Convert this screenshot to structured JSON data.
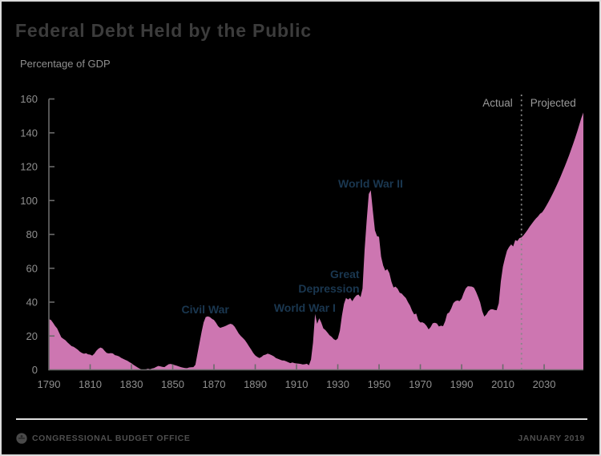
{
  "header": {
    "title": "Federal Debt Held by the Public",
    "units_label": "Percentage of GDP"
  },
  "footer": {
    "org": "CONGRESSIONAL BUDGET OFFICE",
    "date": "JANUARY 2019",
    "logo": "cbo-seal-icon"
  },
  "colors": {
    "background": "#000000",
    "border": "#dcdcdc",
    "area_fill": "#cd76b1",
    "axis": "#6a6a6a",
    "tick_label": "#8f8f8f",
    "title": "#3c3c3c",
    "subtitle": "#8f8f8f",
    "annotation": "#1a3750",
    "divider": "#888888",
    "divider_label": "#9a9a9a",
    "footer_text": "#4f4f4f",
    "footer_line": "#dedede"
  },
  "chart_data": {
    "type": "area",
    "title": "Federal Debt Held by the Public",
    "ylabel": "Percentage of GDP",
    "xlim": [
      1790,
      2049
    ],
    "ylim": [
      0,
      160
    ],
    "y_ticks": [
      0,
      20,
      40,
      60,
      80,
      100,
      120,
      140,
      160
    ],
    "x_ticks": [
      1790,
      1810,
      1830,
      1850,
      1870,
      1890,
      1910,
      1930,
      1950,
      1970,
      1990,
      2010,
      2030
    ],
    "grid": false,
    "legend": false,
    "divider": {
      "year": 2019,
      "left_label": "Actual",
      "right_label": "Projected"
    },
    "annotations": [
      {
        "label": "Civil War",
        "year": 1865.8,
        "pct": 33.4,
        "anchor": "middle"
      },
      {
        "label": "World War I",
        "year": 1914.0,
        "pct": 34.3,
        "anchor": "middle"
      },
      {
        "label": "Great",
        "year": 1940.5,
        "pct": 54.2,
        "anchor": "end"
      },
      {
        "label": "Depression",
        "year": 1940.5,
        "pct": 45.6,
        "anchor": "end"
      },
      {
        "label": "World War II",
        "year": 1945.9,
        "pct": 107.6,
        "anchor": "middle"
      }
    ],
    "series": [
      {
        "name": "Federal debt held by the public (% of GDP)",
        "points": [
          [
            1790,
            30
          ],
          [
            1791,
            29.5
          ],
          [
            1792,
            27.8
          ],
          [
            1793,
            26
          ],
          [
            1794,
            24.5
          ],
          [
            1795,
            21.8
          ],
          [
            1796,
            19.2
          ],
          [
            1797,
            18.3
          ],
          [
            1798,
            17.5
          ],
          [
            1799,
            16.2
          ],
          [
            1800,
            15.1
          ],
          [
            1801,
            14
          ],
          [
            1802,
            13.6
          ],
          [
            1803,
            12.8
          ],
          [
            1804,
            11.9
          ],
          [
            1805,
            10.8
          ],
          [
            1806,
            10
          ],
          [
            1807,
            9.5
          ],
          [
            1808,
            9.8
          ],
          [
            1809,
            9.2
          ],
          [
            1810,
            9
          ],
          [
            1811,
            8.4
          ],
          [
            1812,
            9.5
          ],
          [
            1813,
            11.2
          ],
          [
            1814,
            12.5
          ],
          [
            1815,
            13.2
          ],
          [
            1816,
            12.7
          ],
          [
            1817,
            11.2
          ],
          [
            1818,
            10
          ],
          [
            1819,
            9.7
          ],
          [
            1820,
            9.9
          ],
          [
            1821,
            9.7
          ],
          [
            1822,
            8.7
          ],
          [
            1823,
            8.4
          ],
          [
            1824,
            7.9
          ],
          [
            1825,
            7.1
          ],
          [
            1826,
            6.5
          ],
          [
            1827,
            5.9
          ],
          [
            1828,
            5.4
          ],
          [
            1829,
            4.6
          ],
          [
            1830,
            3.9
          ],
          [
            1831,
            3
          ],
          [
            1832,
            2.2
          ],
          [
            1833,
            1.4
          ],
          [
            1834,
            0.7
          ],
          [
            1835,
            0.2
          ],
          [
            1836,
            0.1
          ],
          [
            1837,
            0.3
          ],
          [
            1838,
            0.7
          ],
          [
            1839,
            0.4
          ],
          [
            1840,
            0.8
          ],
          [
            1841,
            1.1
          ],
          [
            1842,
            1.7
          ],
          [
            1843,
            2.3
          ],
          [
            1844,
            2.1
          ],
          [
            1845,
            1.8
          ],
          [
            1846,
            1.6
          ],
          [
            1847,
            2.5
          ],
          [
            1848,
            3.3
          ],
          [
            1849,
            3.5
          ],
          [
            1850,
            3.2
          ],
          [
            1851,
            2.8
          ],
          [
            1852,
            2.4
          ],
          [
            1853,
            2
          ],
          [
            1854,
            1.6
          ],
          [
            1855,
            1.3
          ],
          [
            1856,
            1.1
          ],
          [
            1857,
            1
          ],
          [
            1858,
            1.4
          ],
          [
            1859,
            1.5
          ],
          [
            1860,
            1.6
          ],
          [
            1861,
            3
          ],
          [
            1862,
            9.5
          ],
          [
            1863,
            16
          ],
          [
            1864,
            22.5
          ],
          [
            1865,
            28
          ],
          [
            1866,
            31.2
          ],
          [
            1867,
            31.6
          ],
          [
            1868,
            31.2
          ],
          [
            1869,
            30.2
          ],
          [
            1870,
            29.5
          ],
          [
            1871,
            27.8
          ],
          [
            1872,
            25.8
          ],
          [
            1873,
            24.8
          ],
          [
            1874,
            25.2
          ],
          [
            1875,
            25.6
          ],
          [
            1876,
            26.2
          ],
          [
            1877,
            26.8
          ],
          [
            1878,
            27.2
          ],
          [
            1879,
            26.8
          ],
          [
            1880,
            25.5
          ],
          [
            1881,
            23.5
          ],
          [
            1882,
            21.5
          ],
          [
            1883,
            20
          ],
          [
            1884,
            18.8
          ],
          [
            1885,
            17.5
          ],
          [
            1886,
            15.8
          ],
          [
            1887,
            13.8
          ],
          [
            1888,
            12
          ],
          [
            1889,
            10
          ],
          [
            1890,
            8.5
          ],
          [
            1891,
            7.6
          ],
          [
            1892,
            7
          ],
          [
            1893,
            7.6
          ],
          [
            1894,
            8.6
          ],
          [
            1895,
            9
          ],
          [
            1896,
            9.6
          ],
          [
            1897,
            9.2
          ],
          [
            1898,
            8.6
          ],
          [
            1899,
            8
          ],
          [
            1900,
            7
          ],
          [
            1901,
            6.5
          ],
          [
            1902,
            6
          ],
          [
            1903,
            5.6
          ],
          [
            1904,
            5.5
          ],
          [
            1905,
            5
          ],
          [
            1906,
            4.5
          ],
          [
            1907,
            4
          ],
          [
            1908,
            4.4
          ],
          [
            1909,
            4
          ],
          [
            1910,
            3.8
          ],
          [
            1911,
            3.7
          ],
          [
            1912,
            3.5
          ],
          [
            1913,
            3.2
          ],
          [
            1914,
            3.3
          ],
          [
            1915,
            3.6
          ],
          [
            1916,
            2.7
          ],
          [
            1917,
            6
          ],
          [
            1918,
            16
          ],
          [
            1919,
            33
          ],
          [
            1920,
            27.2
          ],
          [
            1921,
            30.5
          ],
          [
            1922,
            28
          ],
          [
            1923,
            24.5
          ],
          [
            1924,
            23.5
          ],
          [
            1925,
            22
          ],
          [
            1926,
            20.5
          ],
          [
            1927,
            19.5
          ],
          [
            1928,
            18.2
          ],
          [
            1929,
            17.5
          ],
          [
            1930,
            18.5
          ],
          [
            1931,
            23
          ],
          [
            1932,
            32
          ],
          [
            1933,
            39
          ],
          [
            1934,
            42.5
          ],
          [
            1935,
            41.5
          ],
          [
            1936,
            42.5
          ],
          [
            1937,
            40.5
          ],
          [
            1938,
            42.5
          ],
          [
            1939,
            44
          ],
          [
            1940,
            44.5
          ],
          [
            1941,
            43
          ],
          [
            1942,
            48
          ],
          [
            1943,
            71
          ],
          [
            1944,
            88.3
          ],
          [
            1945,
            103.9
          ],
          [
            1946,
            106.1
          ],
          [
            1947,
            93.9
          ],
          [
            1948,
            82.4
          ],
          [
            1949,
            79
          ],
          [
            1950,
            78.6
          ],
          [
            1951,
            66.9
          ],
          [
            1952,
            61.6
          ],
          [
            1953,
            58.6
          ],
          [
            1954,
            59.5
          ],
          [
            1955,
            57.2
          ],
          [
            1956,
            52
          ],
          [
            1957,
            48.6
          ],
          [
            1958,
            49.2
          ],
          [
            1959,
            47.9
          ],
          [
            1960,
            45.6
          ],
          [
            1961,
            45
          ],
          [
            1962,
            43.7
          ],
          [
            1963,
            42.4
          ],
          [
            1964,
            40
          ],
          [
            1965,
            37.9
          ],
          [
            1966,
            34.9
          ],
          [
            1967,
            32.8
          ],
          [
            1968,
            33.3
          ],
          [
            1969,
            29.3
          ],
          [
            1970,
            28
          ],
          [
            1971,
            28.1
          ],
          [
            1972,
            27.4
          ],
          [
            1973,
            26
          ],
          [
            1974,
            23.9
          ],
          [
            1975,
            25.3
          ],
          [
            1976,
            27.5
          ],
          [
            1977,
            27.8
          ],
          [
            1978,
            27.4
          ],
          [
            1979,
            25.6
          ],
          [
            1980,
            26.1
          ],
          [
            1981,
            25.8
          ],
          [
            1982,
            28.7
          ],
          [
            1983,
            33.1
          ],
          [
            1984,
            34
          ],
          [
            1985,
            36.4
          ],
          [
            1986,
            39.5
          ],
          [
            1987,
            40.6
          ],
          [
            1988,
            41
          ],
          [
            1989,
            40.6
          ],
          [
            1990,
            42.1
          ],
          [
            1991,
            45.3
          ],
          [
            1992,
            48.1
          ],
          [
            1993,
            49.4
          ],
          [
            1994,
            49.3
          ],
          [
            1995,
            49.2
          ],
          [
            1996,
            48.5
          ],
          [
            1997,
            46.1
          ],
          [
            1998,
            43.1
          ],
          [
            1999,
            39.8
          ],
          [
            2000,
            34.7
          ],
          [
            2001,
            31.5
          ],
          [
            2002,
            32.7
          ],
          [
            2003,
            34.7
          ],
          [
            2004,
            35.7
          ],
          [
            2005,
            35.8
          ],
          [
            2006,
            35.4
          ],
          [
            2007,
            35.2
          ],
          [
            2008,
            39.3
          ],
          [
            2009,
            52.3
          ],
          [
            2010,
            60.9
          ],
          [
            2011,
            65.9
          ],
          [
            2012,
            70.4
          ],
          [
            2013,
            72.6
          ],
          [
            2014,
            74.1
          ],
          [
            2015,
            72.9
          ],
          [
            2016,
            76.7
          ],
          [
            2017,
            76.1
          ],
          [
            2018,
            77.8
          ],
          [
            2019,
            78.2
          ],
          [
            2020,
            79.5
          ],
          [
            2021,
            81.1
          ],
          [
            2022,
            82.8
          ],
          [
            2023,
            84.6
          ],
          [
            2024,
            86.3
          ],
          [
            2025,
            87.9
          ],
          [
            2026,
            89.4
          ],
          [
            2027,
            90.6
          ],
          [
            2028,
            92.2
          ],
          [
            2029,
            93
          ],
          [
            2030,
            94.8
          ],
          [
            2031,
            96.8
          ],
          [
            2032,
            99
          ],
          [
            2033,
            101.3
          ],
          [
            2034,
            103.7
          ],
          [
            2035,
            106.2
          ],
          [
            2036,
            108.8
          ],
          [
            2037,
            111.5
          ],
          [
            2038,
            114.3
          ],
          [
            2039,
            117.2
          ],
          [
            2040,
            120.2
          ],
          [
            2041,
            123.3
          ],
          [
            2042,
            126.5
          ],
          [
            2043,
            129.8
          ],
          [
            2044,
            133.3
          ],
          [
            2045,
            136.9
          ],
          [
            2046,
            140.7
          ],
          [
            2047,
            144.6
          ],
          [
            2048,
            148.7
          ],
          [
            2049,
            152
          ]
        ]
      }
    ]
  }
}
